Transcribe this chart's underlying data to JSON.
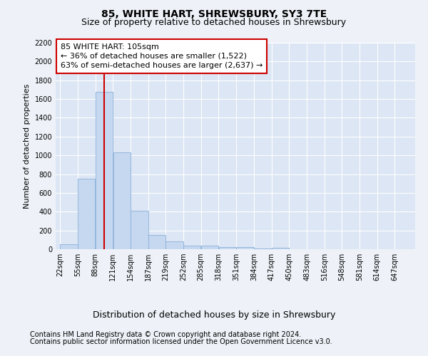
{
  "title": "85, WHITE HART, SHREWSBURY, SY3 7TE",
  "subtitle": "Size of property relative to detached houses in Shrewsbury",
  "xlabel": "Distribution of detached houses by size in Shrewsbury",
  "ylabel": "Number of detached properties",
  "footer_line1": "Contains HM Land Registry data © Crown copyright and database right 2024.",
  "footer_line2": "Contains public sector information licensed under the Open Government Licence v3.0.",
  "bar_edges": [
    22,
    55,
    88,
    121,
    154,
    187,
    219,
    252,
    285,
    318,
    351,
    384,
    417,
    450,
    483,
    516,
    548,
    581,
    614,
    647,
    680
  ],
  "bar_values": [
    50,
    750,
    1680,
    1030,
    410,
    155,
    80,
    40,
    35,
    20,
    20,
    10,
    15,
    0,
    0,
    0,
    0,
    0,
    0,
    0
  ],
  "bar_color": "#c6d8f0",
  "bar_edge_color": "#8ab0d8",
  "vline_x": 105,
  "vline_color": "#cc0000",
  "annotation_text_line1": "85 WHITE HART: 105sqm",
  "annotation_text_line2": "← 36% of detached houses are smaller (1,522)",
  "annotation_text_line3": "63% of semi-detached houses are larger (2,637) →",
  "annotation_box_color": "#cc0000",
  "ylim": [
    0,
    2200
  ],
  "yticks": [
    0,
    200,
    400,
    600,
    800,
    1000,
    1200,
    1400,
    1600,
    1800,
    2000,
    2200
  ],
  "bg_color": "#eef2f8",
  "plot_bg_color": "#dce6f4",
  "grid_color": "#ffffff",
  "title_fontsize": 10,
  "subtitle_fontsize": 9,
  "xlabel_fontsize": 9,
  "ylabel_fontsize": 8,
  "tick_fontsize": 7,
  "footer_fontsize": 7,
  "annotation_fontsize": 8
}
